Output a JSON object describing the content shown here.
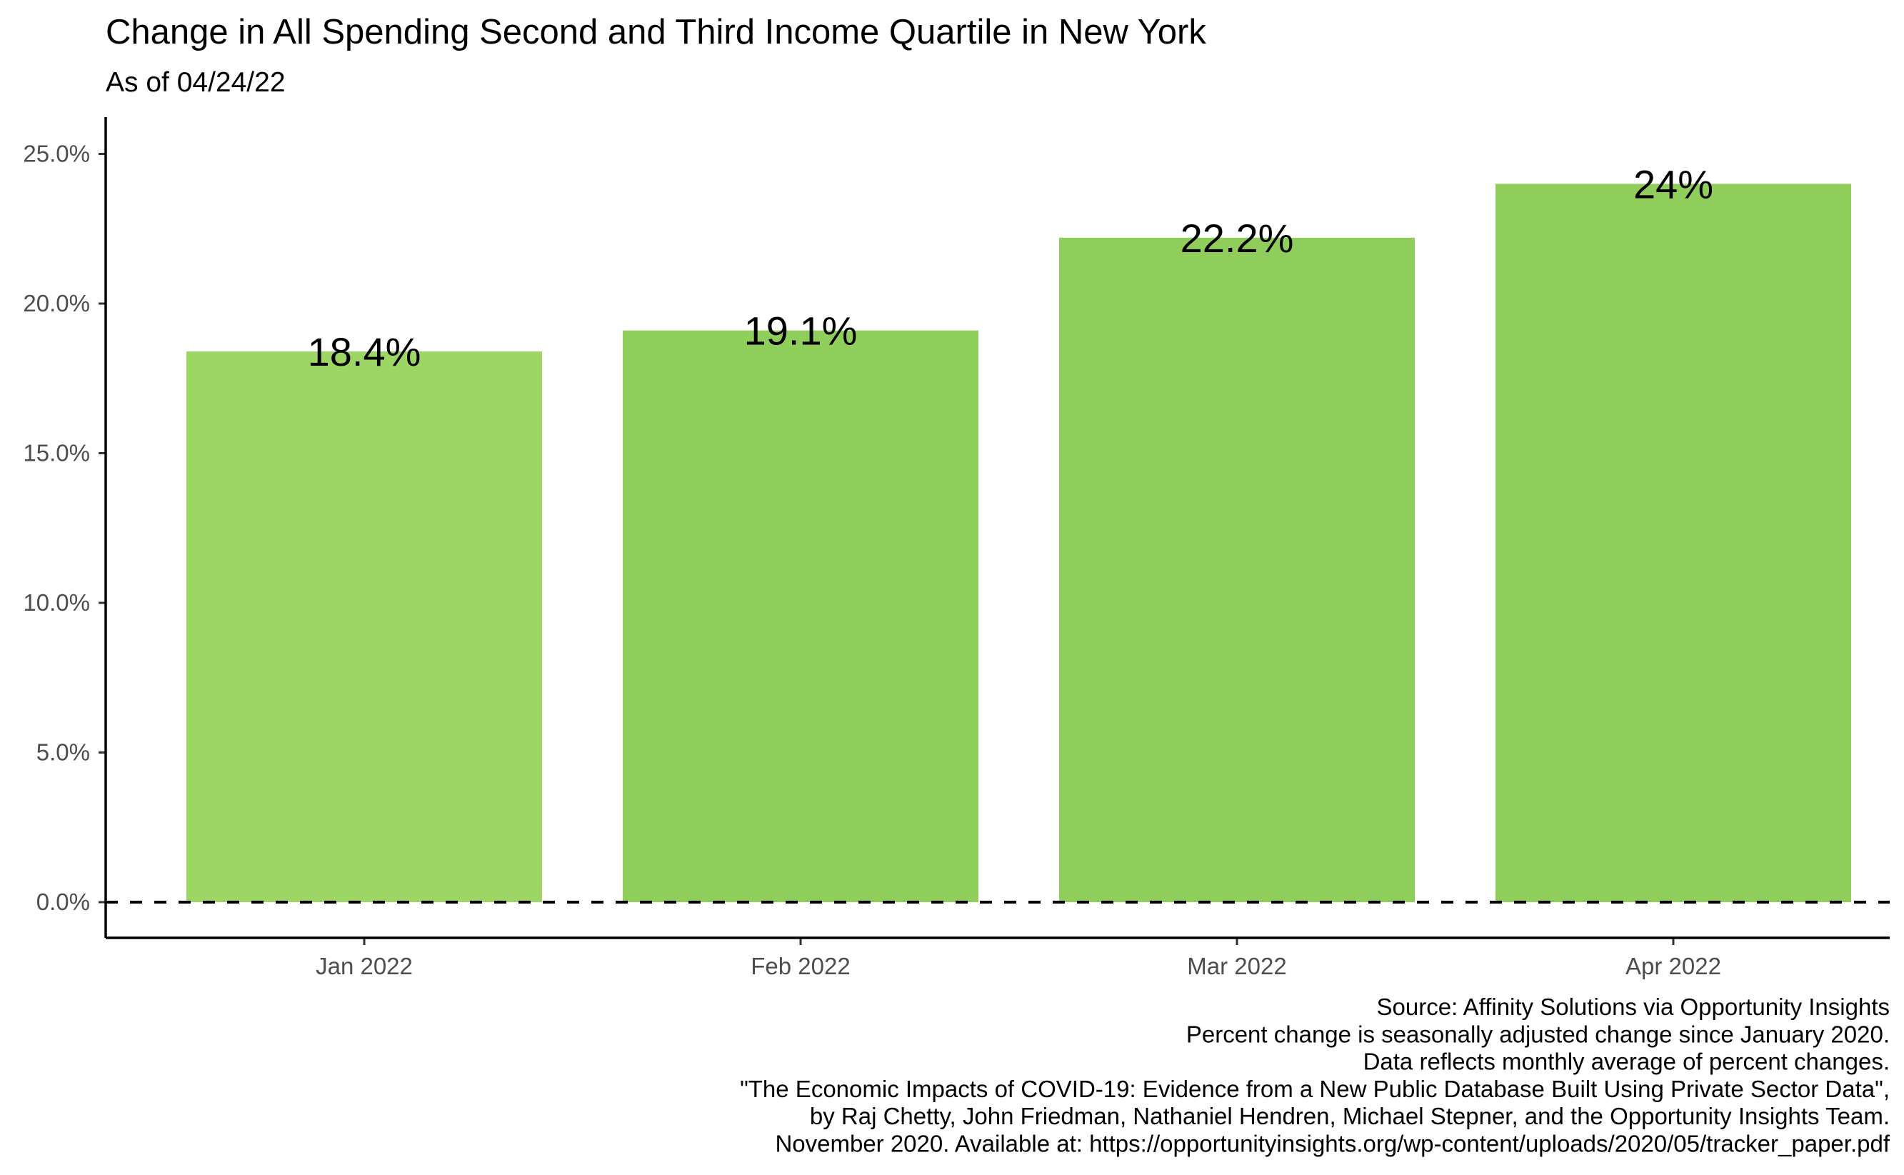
{
  "chart_data": {
    "type": "bar",
    "title": "Change in All Spending Second and Third Income Quartile in New York",
    "subtitle": "As of 04/24/22",
    "xlabel": "",
    "ylabel": "",
    "categories": [
      "Jan 2022",
      "Feb 2022",
      "Mar 2022",
      "Apr 2022"
    ],
    "values": [
      18.4,
      19.1,
      22.2,
      24.0
    ],
    "data_labels": [
      "18.4%",
      "19.1%",
      "22.2%",
      "24%"
    ],
    "bar_colors": [
      "#9dd665",
      "#8fce5a",
      "#8fce5a",
      "#8fce5a"
    ],
    "ylim": [
      -1.2,
      26.2
    ],
    "y_ticks": [
      0,
      5,
      10,
      15,
      20,
      25
    ],
    "y_tick_labels": [
      "0.0%",
      "5.0%",
      "10.0%",
      "15.0%",
      "20.0%",
      "25.0%"
    ],
    "reference_line": {
      "y": 0,
      "style": "dashed",
      "color": "#000000"
    },
    "grid": false,
    "legend": "none",
    "caption": [
      "Source: Affinity Solutions via Opportunity Insights",
      "Percent change is seasonally adjusted change since January 2020.",
      "Data reflects monthly average of percent changes.",
      "\"The Economic Impacts of COVID-19: Evidence from a New Public Database Built Using Private Sector Data\",",
      "by Raj Chetty, John Friedman, Nathaniel Hendren, Michael Stepner, and the Opportunity Insights Team.",
      "November 2020. Available at: https://opportunityinsights.org/wp-content/uploads/2020/05/tracker_paper.pdf"
    ]
  }
}
